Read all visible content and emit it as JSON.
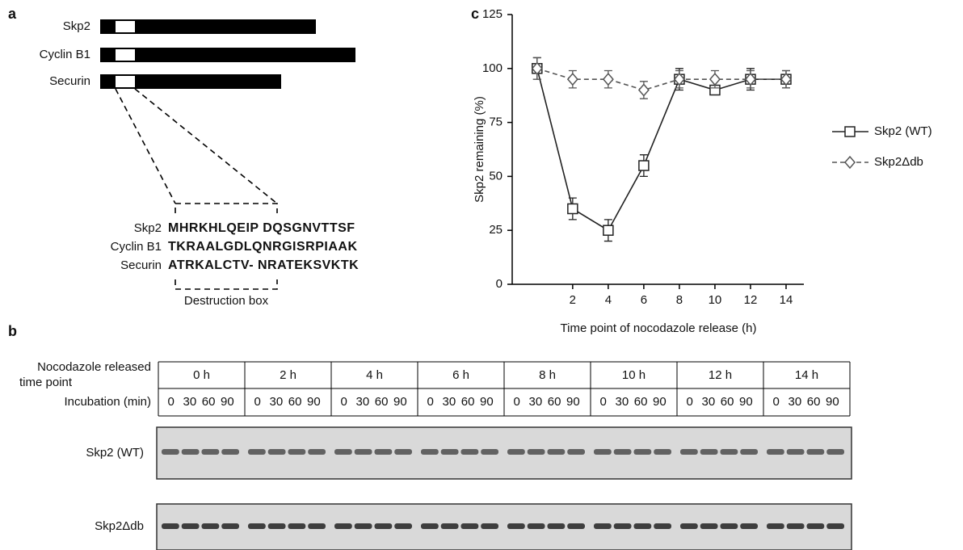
{
  "panel_a": {
    "label": "a",
    "proteins": [
      "Skp2",
      "Cyclin B1",
      "Securin"
    ],
    "alignment": {
      "names": [
        "Skp2",
        "Cyclin B1",
        "Securin"
      ],
      "sequences": [
        "MHRKHLQEIP DQSGNVTTSF",
        "TKRAALGDLQNRGISRPIAAK",
        "ATRKALCTV- NRATEKSVKTK"
      ]
    },
    "box_label": "Destruction box"
  },
  "panel_b": {
    "label": "b",
    "header_lines": [
      "Nocodazole released",
      "time point"
    ],
    "time_points": [
      "0 h",
      "2 h",
      "4 h",
      "6 h",
      "8 h",
      "10 h",
      "12 h",
      "14 h"
    ],
    "incubation_label": "Incubation (min)",
    "incubation": [
      "0",
      "30",
      "60",
      "90"
    ],
    "rows": [
      "Skp2 (WT)",
      "Skp2Δdb"
    ]
  },
  "chart_data": {
    "type": "line",
    "panel_label": "c",
    "x_label": "Time point of nocodazole release (h)",
    "y_label": "Skp2 remaining (%)",
    "x": [
      0,
      2,
      4,
      6,
      8,
      10,
      12,
      14
    ],
    "xlim": [
      -1.4,
      15
    ],
    "xticks": [
      2,
      4,
      6,
      8,
      10,
      12,
      14
    ],
    "ylim": [
      0,
      125
    ],
    "yticks": [
      0,
      25,
      50,
      75,
      100,
      125
    ],
    "series": [
      {
        "name": "Skp2 (WT)",
        "color": "#222222",
        "marker": "square",
        "dashed": false,
        "values": [
          100,
          35,
          25,
          55,
          95,
          90,
          95,
          95
        ],
        "errors": [
          5,
          5,
          5,
          5,
          5,
          0,
          5,
          4
        ]
      },
      {
        "name": "Skp2Δdb",
        "color": "#555555",
        "marker": "diamond",
        "dashed": true,
        "values": [
          100,
          95,
          95,
          90,
          95,
          95,
          95,
          95
        ],
        "errors": [
          5,
          4,
          4,
          4,
          4,
          4,
          4,
          4
        ]
      }
    ]
  }
}
